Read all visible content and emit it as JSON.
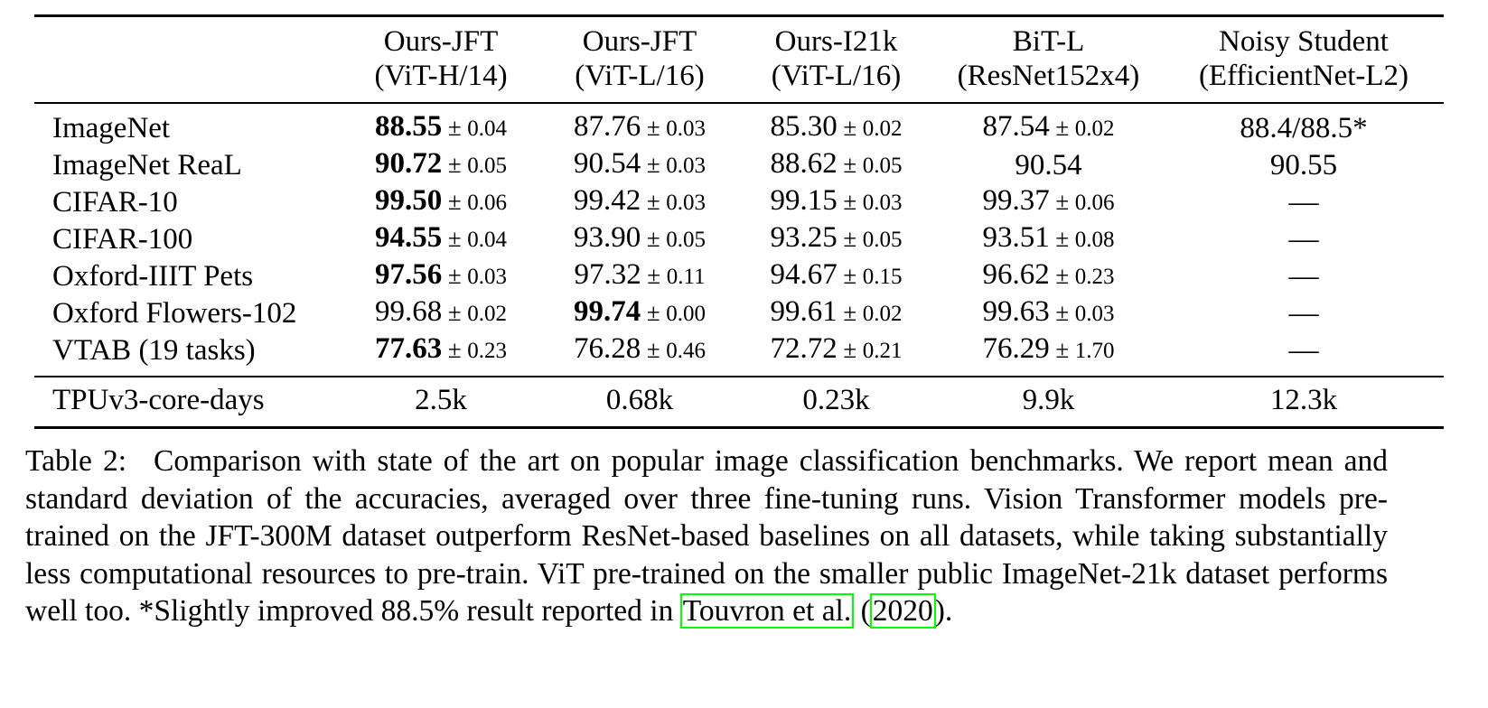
{
  "table": {
    "headers": [
      {
        "l1": "",
        "l2": ""
      },
      {
        "l1": "Ours-JFT",
        "l2": "(ViT-H/14)"
      },
      {
        "l1": "Ours-JFT",
        "l2": "(ViT-L/16)"
      },
      {
        "l1": "Ours-I21k",
        "l2": "(ViT-L/16)"
      },
      {
        "l1": "BiT-L",
        "l2": "(ResNet152x4)"
      },
      {
        "l1": "Noisy Student",
        "l2": "(EfficientNet-L2)"
      }
    ],
    "pm": "±",
    "rows": [
      {
        "label": "ImageNet",
        "cells": [
          {
            "val": "88.55",
            "std": "0.04",
            "bold": true
          },
          {
            "val": "87.76",
            "std": "0.03",
            "bold": false
          },
          {
            "val": "85.30",
            "std": "0.02",
            "bold": false
          },
          {
            "val": "87.54",
            "std": "0.02",
            "bold": false
          },
          {
            "val": "88.4/88.5*",
            "std": "",
            "bold": false
          }
        ]
      },
      {
        "label": "ImageNet ReaL",
        "cells": [
          {
            "val": "90.72",
            "std": "0.05",
            "bold": true
          },
          {
            "val": "90.54",
            "std": "0.03",
            "bold": false
          },
          {
            "val": "88.62",
            "std": "0.05",
            "bold": false
          },
          {
            "val": "90.54",
            "std": "",
            "bold": false
          },
          {
            "val": "90.55",
            "std": "",
            "bold": false
          }
        ]
      },
      {
        "label": "CIFAR-10",
        "cells": [
          {
            "val": "99.50",
            "std": "0.06",
            "bold": true
          },
          {
            "val": "99.42",
            "std": "0.03",
            "bold": false
          },
          {
            "val": "99.15",
            "std": "0.03",
            "bold": false
          },
          {
            "val": "99.37",
            "std": "0.06",
            "bold": false
          },
          {
            "val": "—",
            "std": "",
            "bold": false
          }
        ]
      },
      {
        "label": "CIFAR-100",
        "cells": [
          {
            "val": "94.55",
            "std": "0.04",
            "bold": true
          },
          {
            "val": "93.90",
            "std": "0.05",
            "bold": false
          },
          {
            "val": "93.25",
            "std": "0.05",
            "bold": false
          },
          {
            "val": "93.51",
            "std": "0.08",
            "bold": false
          },
          {
            "val": "—",
            "std": "",
            "bold": false
          }
        ]
      },
      {
        "label": "Oxford-IIIT Pets",
        "cells": [
          {
            "val": "97.56",
            "std": "0.03",
            "bold": true
          },
          {
            "val": "97.32",
            "std": "0.11",
            "bold": false
          },
          {
            "val": "94.67",
            "std": "0.15",
            "bold": false
          },
          {
            "val": "96.62",
            "std": "0.23",
            "bold": false
          },
          {
            "val": "—",
            "std": "",
            "bold": false
          }
        ]
      },
      {
        "label": "Oxford Flowers-102",
        "cells": [
          {
            "val": "99.68",
            "std": "0.02",
            "bold": false
          },
          {
            "val": "99.74",
            "std": "0.00",
            "bold": true
          },
          {
            "val": "99.61",
            "std": "0.02",
            "bold": false
          },
          {
            "val": "99.63",
            "std": "0.03",
            "bold": false
          },
          {
            "val": "—",
            "std": "",
            "bold": false
          }
        ]
      },
      {
        "label": "VTAB (19 tasks)",
        "cells": [
          {
            "val": "77.63",
            "std": "0.23",
            "bold": true
          },
          {
            "val": "76.28",
            "std": "0.46",
            "bold": false
          },
          {
            "val": "72.72",
            "std": "0.21",
            "bold": false
          },
          {
            "val": "76.29",
            "std": "1.70",
            "bold": false
          },
          {
            "val": "—",
            "std": "",
            "bold": false
          }
        ]
      }
    ],
    "cost_row": {
      "label": "TPUv3-core-days",
      "cells": [
        "2.5k",
        "0.68k",
        "0.23k",
        "9.9k",
        "12.3k"
      ]
    }
  },
  "caption": {
    "label": "Table 2:",
    "text_main": "Comparison with state of the art on popular image classification benchmarks. We report mean and standard deviation of the accuracies, averaged over three fine-tuning runs. Vision Transformer models pre-trained on the JFT-300M dataset outperform ResNet-based baselines on all datasets, while taking substantially less computational resources to pre-train. ViT pre-trained on the smaller public ImageNet-21k dataset performs well too. *Slightly improved 88.5% result reported in ",
    "cite_author": "Touvron et al.",
    "cite_open": " (",
    "cite_year": "2020",
    "cite_close": ")."
  },
  "colors": {
    "citation_box": "#00ff00"
  }
}
